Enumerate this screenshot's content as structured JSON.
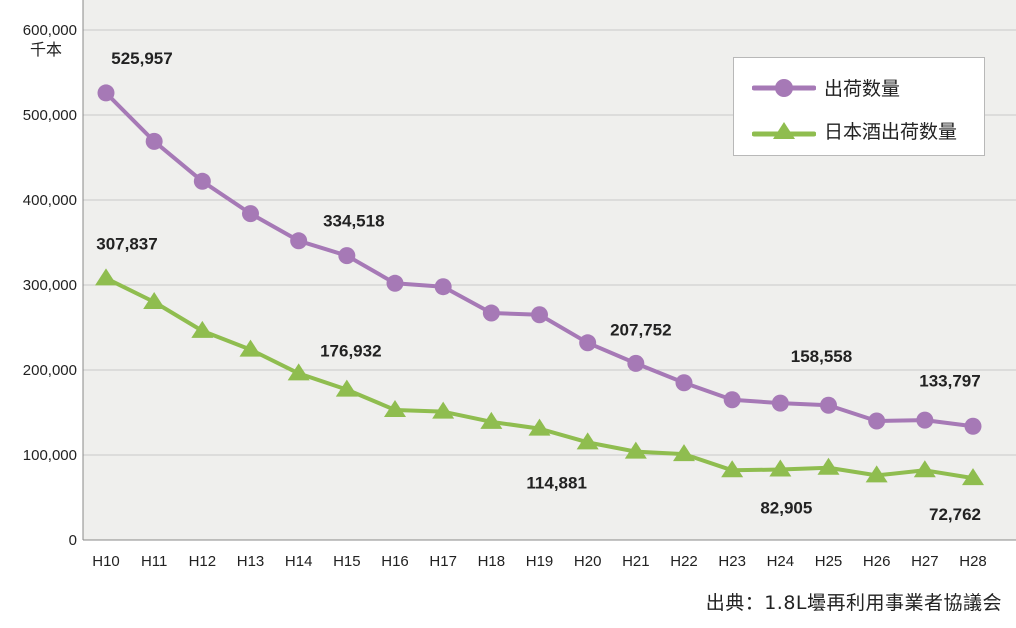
{
  "chart_data": {
    "type": "line",
    "title": "",
    "ylabel": "千本",
    "xlabel": "",
    "ylim": [
      0,
      600000
    ],
    "yticks": [
      0,
      100000,
      200000,
      300000,
      400000,
      500000,
      600000
    ],
    "ytick_labels": [
      "0",
      "100,000",
      "200,000",
      "300,000",
      "400,000",
      "500,000",
      "600,000"
    ],
    "grid": true,
    "legend_position": "top-right",
    "categories": [
      "H10",
      "H11",
      "H12",
      "H13",
      "H14",
      "H15",
      "H16",
      "H17",
      "H18",
      "H19",
      "H20",
      "H21",
      "H22",
      "H23",
      "H24",
      "H25",
      "H26",
      "H27",
      "H28"
    ],
    "series": [
      {
        "name": "出荷数量",
        "color": "#a679b6",
        "marker": "circle",
        "values": [
          525957,
          469000,
          422000,
          384000,
          352000,
          334518,
          302000,
          298000,
          267000,
          265000,
          232000,
          207752,
          185000,
          165000,
          161000,
          158558,
          140000,
          141000,
          133797
        ]
      },
      {
        "name": "日本酒出荷数量",
        "color": "#8fbd4f",
        "marker": "triangle",
        "values": [
          307837,
          280000,
          246000,
          224000,
          196000,
          176932,
          153000,
          151000,
          139000,
          131000,
          114881,
          104000,
          101000,
          82000,
          82905,
          85000,
          76000,
          82000,
          72762
        ]
      }
    ],
    "annotations": [
      {
        "series": 0,
        "index": 0,
        "text": "525,957"
      },
      {
        "series": 0,
        "index": 5,
        "text": "334,518"
      },
      {
        "series": 0,
        "index": 11,
        "text": "207,752"
      },
      {
        "series": 0,
        "index": 15,
        "text": "158,558"
      },
      {
        "series": 0,
        "index": 18,
        "text": "133,797"
      },
      {
        "series": 1,
        "index": 0,
        "text": "307,837"
      },
      {
        "series": 1,
        "index": 5,
        "text": "176,932"
      },
      {
        "series": 1,
        "index": 10,
        "text": "114,881"
      },
      {
        "series": 1,
        "index": 14,
        "text": "82,905"
      },
      {
        "series": 1,
        "index": 18,
        "text": "72,762"
      }
    ],
    "source": "出典：1.8L壜再利用事業者協議会"
  }
}
